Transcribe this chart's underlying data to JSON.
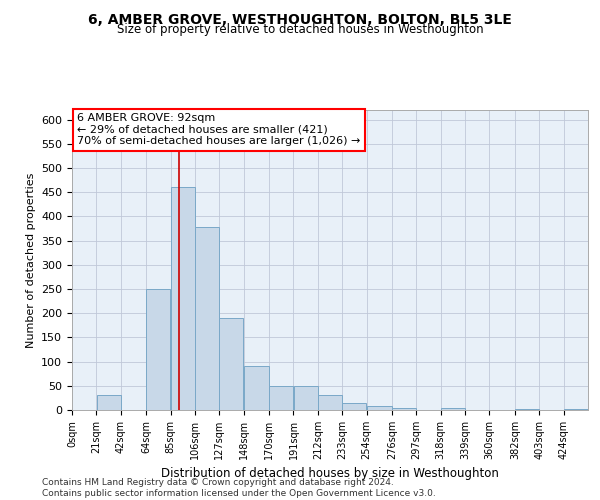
{
  "title": "6, AMBER GROVE, WESTHOUGHTON, BOLTON, BL5 3LE",
  "subtitle": "Size of property relative to detached houses in Westhoughton",
  "xlabel": "Distribution of detached houses by size in Westhoughton",
  "ylabel": "Number of detached properties",
  "footer_line1": "Contains HM Land Registry data © Crown copyright and database right 2024.",
  "footer_line2": "Contains public sector information licensed under the Open Government Licence v3.0.",
  "annotation_title": "6 AMBER GROVE: 92sqm",
  "annotation_line1": "← 29% of detached houses are smaller (421)",
  "annotation_line2": "70% of semi-detached houses are larger (1,026) →",
  "property_size": 92,
  "bar_categories": [
    "0sqm",
    "21sqm",
    "42sqm",
    "64sqm",
    "85sqm",
    "106sqm",
    "127sqm",
    "148sqm",
    "170sqm",
    "191sqm",
    "212sqm",
    "233sqm",
    "254sqm",
    "276sqm",
    "297sqm",
    "318sqm",
    "339sqm",
    "360sqm",
    "382sqm",
    "403sqm",
    "424sqm"
  ],
  "bar_values": [
    0,
    30,
    0,
    250,
    460,
    378,
    190,
    90,
    50,
    50,
    30,
    15,
    8,
    5,
    0,
    5,
    0,
    0,
    3,
    0,
    3
  ],
  "bin_edges": [
    0,
    21,
    42,
    64,
    85,
    106,
    127,
    148,
    170,
    191,
    212,
    233,
    254,
    276,
    297,
    318,
    339,
    360,
    382,
    403,
    424,
    445
  ],
  "bar_color": "#c8d8e8",
  "bar_edge_color": "#7aa8c8",
  "highlight_color": "#cc0000",
  "grid_color": "#c0c8d8",
  "bg_color": "#e8f0f8",
  "ylim": [
    0,
    620
  ],
  "yticks": [
    0,
    50,
    100,
    150,
    200,
    250,
    300,
    350,
    400,
    450,
    500,
    550,
    600
  ]
}
